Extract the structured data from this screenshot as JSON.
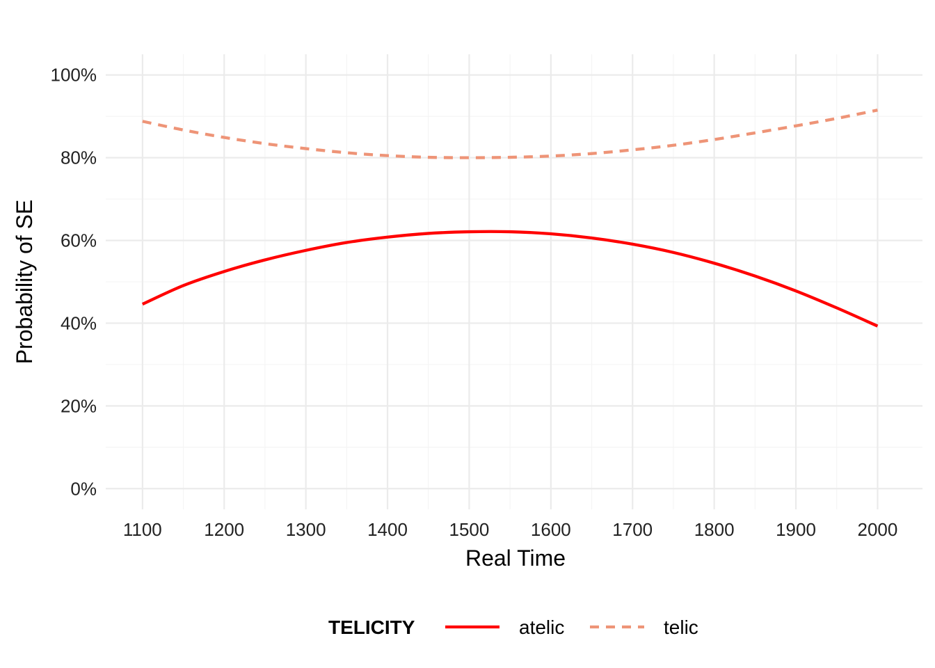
{
  "chart_data": {
    "type": "line",
    "title": "",
    "xlabel": "Real Time",
    "ylabel": "Probability of SE",
    "xlim": [
      1055,
      2055
    ],
    "ylim": [
      -0.05,
      1.05
    ],
    "x_ticks": [
      1100,
      1200,
      1300,
      1400,
      1500,
      1600,
      1700,
      1800,
      1900,
      2000
    ],
    "y_ticks": [
      0,
      0.2,
      0.4,
      0.6,
      0.8,
      1.0
    ],
    "y_tick_labels": [
      "0%",
      "20%",
      "40%",
      "60%",
      "80%",
      "100%"
    ],
    "grid": true,
    "legend": {
      "title": "TELICITY",
      "position": "bottom"
    },
    "x": [
      1100,
      1150,
      1200,
      1250,
      1300,
      1350,
      1400,
      1450,
      1500,
      1550,
      1600,
      1650,
      1700,
      1750,
      1800,
      1850,
      1900,
      1950,
      2000
    ],
    "series": [
      {
        "name": "atelic",
        "color": "#ff0000",
        "line_style": "solid",
        "values": [
          0.446,
          0.491,
          0.525,
          0.553,
          0.576,
          0.595,
          0.608,
          0.617,
          0.621,
          0.621,
          0.616,
          0.606,
          0.591,
          0.571,
          0.545,
          0.514,
          0.478,
          0.437,
          0.393
        ]
      },
      {
        "name": "telic",
        "color": "#ee9477",
        "line_style": "dashed",
        "values": [
          0.888,
          0.867,
          0.849,
          0.834,
          0.822,
          0.812,
          0.805,
          0.801,
          0.8,
          0.801,
          0.804,
          0.81,
          0.819,
          0.83,
          0.844,
          0.86,
          0.877,
          0.895,
          0.915
        ]
      }
    ]
  }
}
